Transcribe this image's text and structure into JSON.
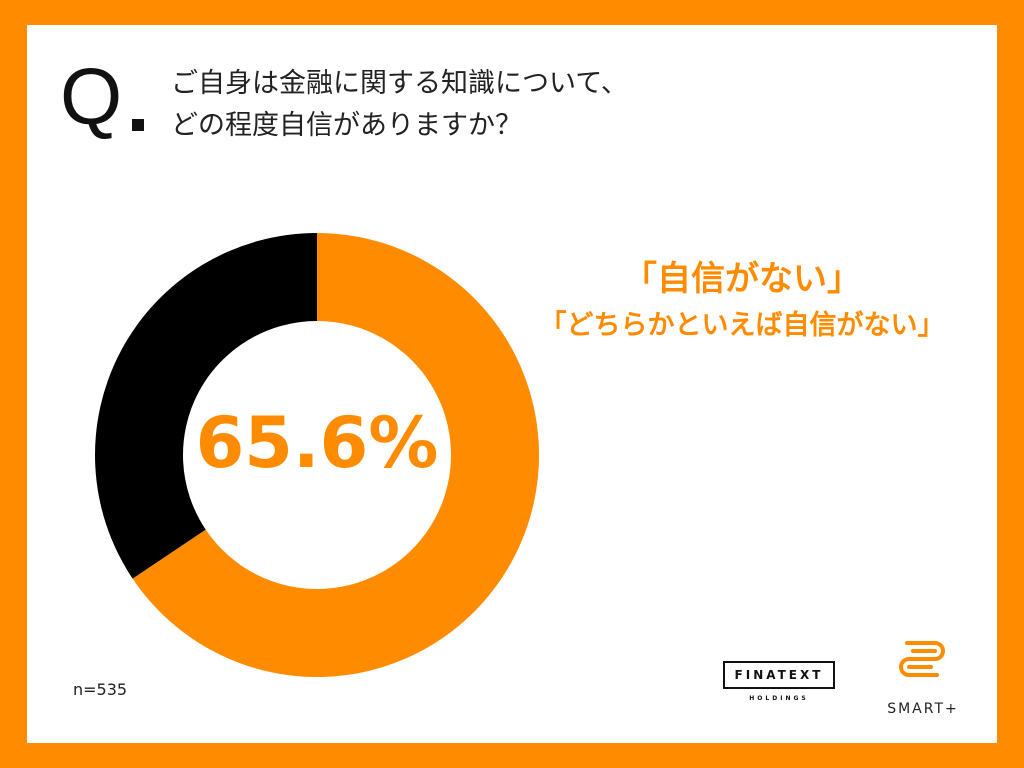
{
  "question": {
    "mark": "Q",
    "line1": "ご自身は金融に関する知識について、",
    "line2": "どの程度自信がありますか？"
  },
  "chart_data": {
    "type": "pie",
    "style": "donut",
    "center_label": "65.6%",
    "slices": [
      {
        "label": "「自信がない」「どちらかといえば自信がない」",
        "value": 65.6,
        "color": "#ff8c00"
      },
      {
        "label": "",
        "value": 34.4,
        "color": "#000000"
      }
    ],
    "annotations": [
      "「自信がない」",
      "「どちらかといえば自信がない」"
    ]
  },
  "answer": {
    "line1": "「自信がない」",
    "line2": "「どちらかといえば自信がない」"
  },
  "sample_size": "n=535",
  "logos": {
    "finatext": "FINATEXT",
    "finatext_sub": "HOLDINGS",
    "smart": "SMART+"
  },
  "colors": {
    "accent": "#ff8c00",
    "dark": "#000000"
  }
}
